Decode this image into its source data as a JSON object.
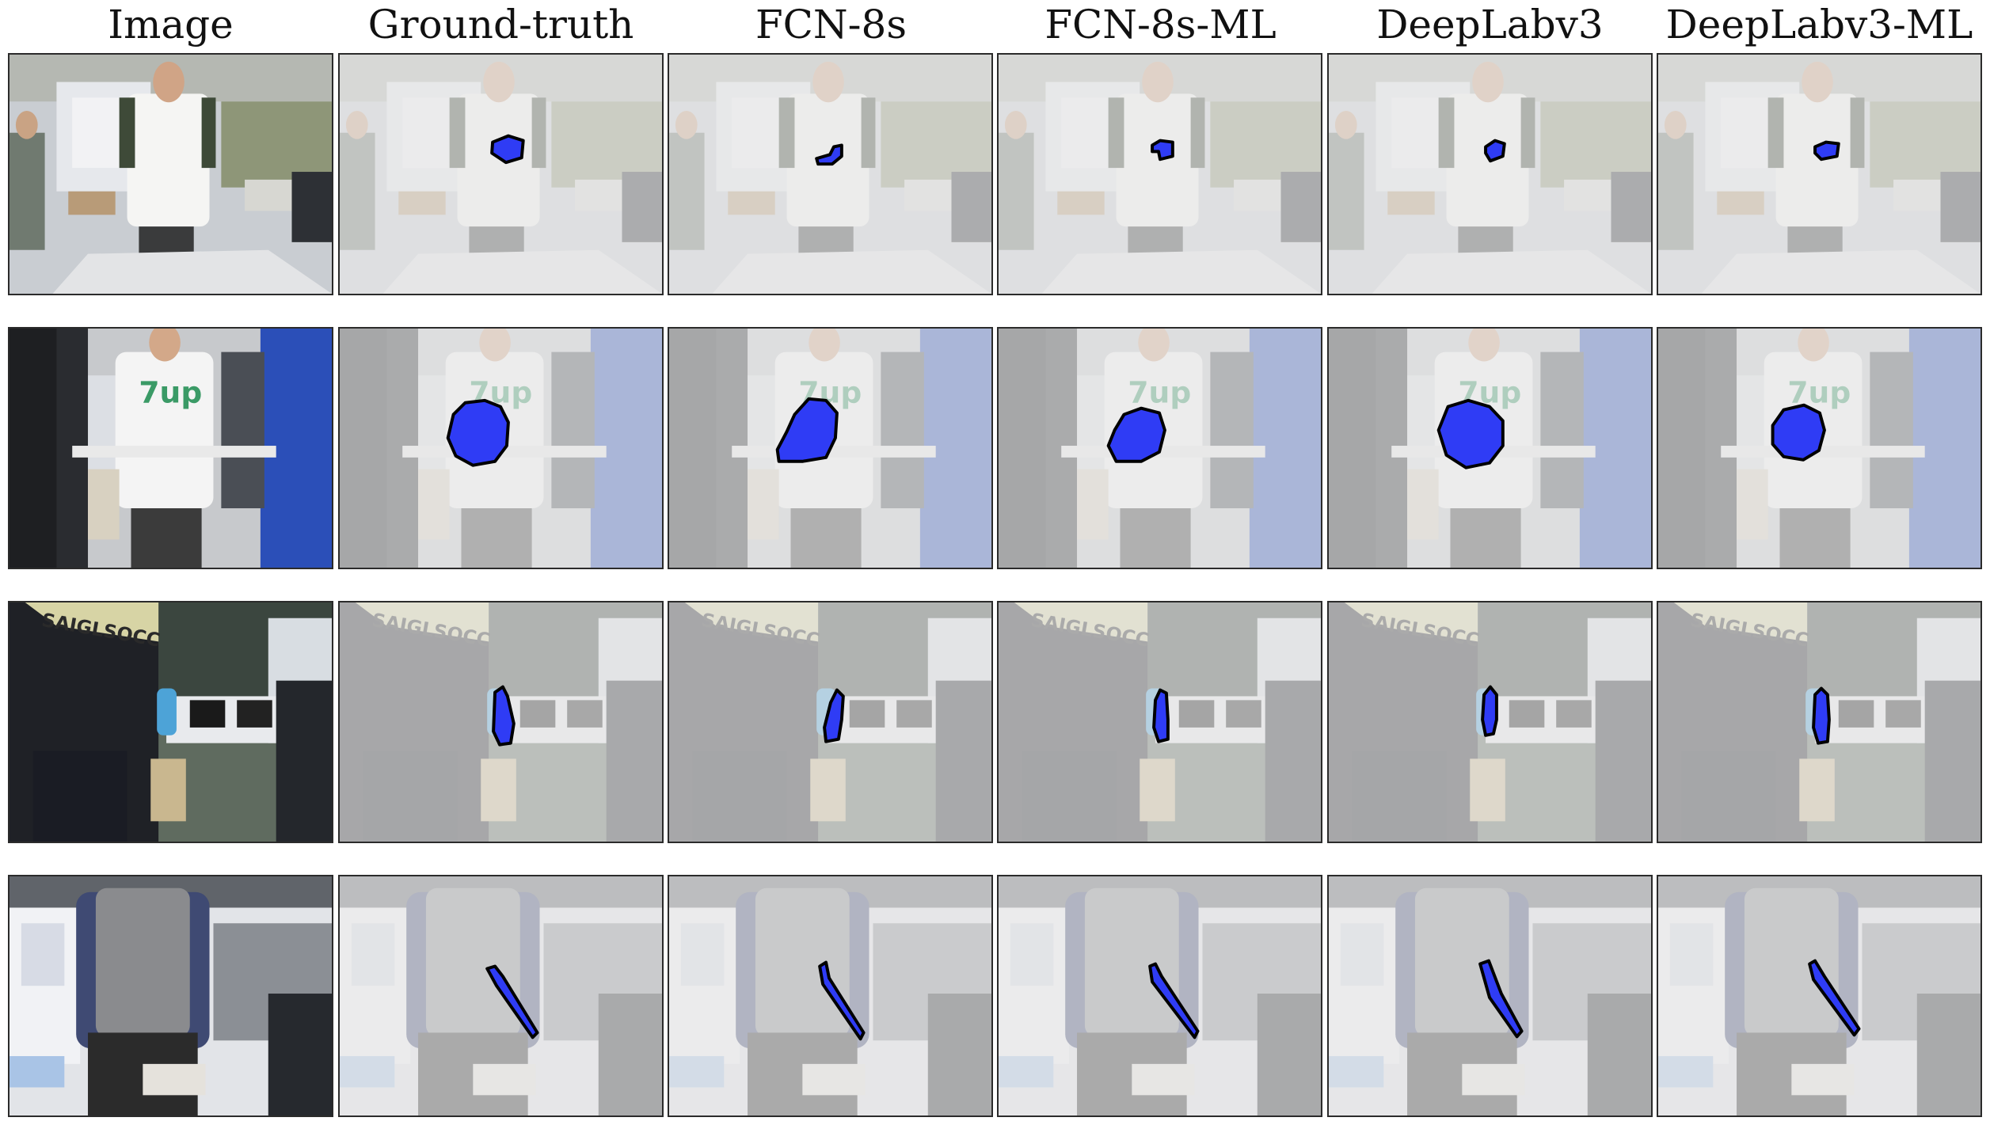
{
  "figure": {
    "columns": [
      {
        "label": "Image"
      },
      {
        "label": "Ground-truth"
      },
      {
        "label": "FCN-8s"
      },
      {
        "label": "FCN-8s-ML"
      },
      {
        "label": "DeepLabv3"
      },
      {
        "label": "DeepLabv3-ML"
      }
    ],
    "rows": [
      {
        "scene": "person-holding-small-object"
      },
      {
        "scene": "person-holding-round-bag"
      },
      {
        "scene": "person-holding-water-bottle"
      },
      {
        "scene": "person-holding-stick"
      }
    ],
    "colors": {
      "mask_fill": "#2f3cf5",
      "mask_outline": "#000000",
      "faded_overlay": "rgba(232,232,232,0.68)"
    }
  }
}
